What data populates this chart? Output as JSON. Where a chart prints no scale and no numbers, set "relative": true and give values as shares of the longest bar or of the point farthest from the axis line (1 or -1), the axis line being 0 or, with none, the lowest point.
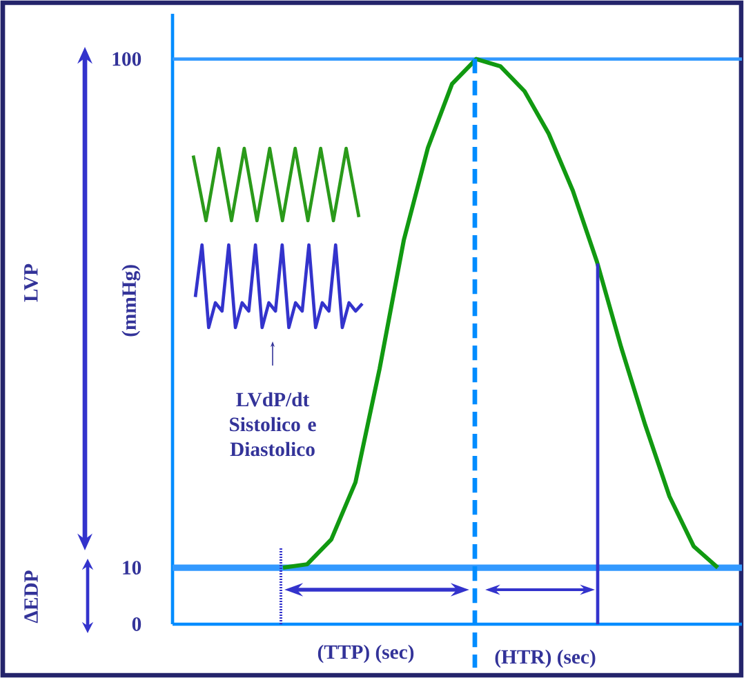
{
  "chart_data": [
    {
      "type": "line",
      "ylabel": "(mmHg)",
      "categories": [
        null,
        null,
        null,
        null,
        null,
        null,
        null,
        null,
        null,
        null,
        null,
        null,
        null,
        null,
        null,
        null,
        null,
        null,
        null
      ],
      "series": [
        {
          "color": "#119911",
          "values": [
            10,
            10.6,
            15,
            25.1,
            45.2,
            67.9,
            84.3,
            95.6,
            100,
            98.7,
            94.3,
            86.8,
            76.7,
            64.1,
            49,
            35.2,
            22.6,
            13.8,
            10
          ]
        }
      ],
      "ylim": [
        0,
        108
      ],
      "yticks": [
        0,
        10,
        100
      ],
      "tick_labels": "y",
      "marker": "none",
      "line_style": "solid",
      "ref_lines": [
        {
          "axis": "y",
          "value": 10,
          "color": "#3399ff",
          "line_style": "solid"
        },
        {
          "axis": "y",
          "value": 100,
          "color": "#3399ff",
          "line_style": "solid"
        }
      ],
      "annotations": [
        "LVP",
        "ΔEDP",
        "LVdP/dt Sistolico e Diastolico",
        "(TTP) (sec)",
        "(HTR) (sec)"
      ]
    },
    {
      "type": "line",
      "relative": true,
      "categories": [
        null,
        null,
        null,
        null,
        null,
        null,
        null,
        null,
        null,
        null,
        null,
        null,
        null,
        null
      ],
      "series": [
        {
          "color": "#2a9a1a",
          "values": [
            0.9,
            0,
            1,
            0,
            1,
            0,
            1,
            0,
            1,
            0,
            1,
            0,
            1,
            0.05
          ]
        }
      ]
    },
    {
      "type": "line",
      "relative": true,
      "categories": [
        null,
        null,
        null,
        null,
        null,
        null,
        null,
        null,
        null,
        null,
        null,
        null,
        null,
        null,
        null,
        null,
        null,
        null,
        null,
        null,
        null,
        null,
        null,
        null,
        null,
        null
      ],
      "series": [
        {
          "color": "#3333cc",
          "values": [
            0.37,
            1,
            0,
            0.3,
            0.2,
            1,
            0,
            0.3,
            0.2,
            1,
            0,
            0.3,
            0.2,
            1,
            0,
            0.3,
            0.2,
            1,
            0,
            0.3,
            0.2,
            1,
            0,
            0.3,
            0.2,
            0.29
          ]
        }
      ]
    }
  ]
}
